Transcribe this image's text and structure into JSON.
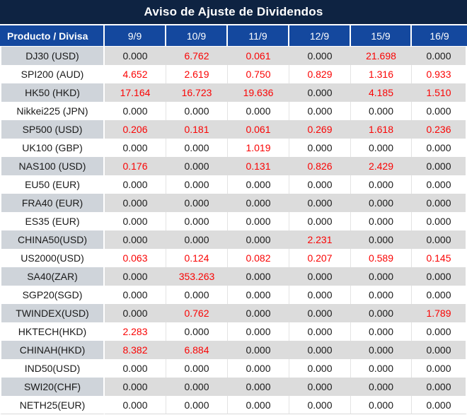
{
  "title": "Aviso de Ajuste de Dividendos",
  "colors": {
    "title_bar_bg": "#0e2342",
    "header_row_bg": "#14489e",
    "gray_row_product_bg": "#cfd4da",
    "gray_row_value_bg": "#dcdcdc",
    "negative_adjustment_red": "#fa0404",
    "value_text": "#1a1a1a"
  },
  "table": {
    "product_header": "Producto / Divisa",
    "date_headers": [
      "9/9",
      "10/9",
      "11/9",
      "12/9",
      "15/9",
      "16/9"
    ],
    "rows": [
      {
        "product": "DJ30 (USD)",
        "values": [
          "0.000",
          "6.762",
          "0.061",
          "0.000",
          "21.698",
          "0.000"
        ],
        "red": [
          0,
          1,
          1,
          0,
          1,
          0
        ]
      },
      {
        "product": "SPI200 (AUD)",
        "values": [
          "4.652",
          "2.619",
          "0.750",
          "0.829",
          "1.316",
          "0.933"
        ],
        "red": [
          1,
          1,
          1,
          1,
          1,
          1
        ]
      },
      {
        "product": "HK50 (HKD)",
        "values": [
          "17.164",
          "16.723",
          "19.636",
          "0.000",
          "4.185",
          "1.510"
        ],
        "red": [
          1,
          1,
          1,
          0,
          1,
          1
        ]
      },
      {
        "product": "Nikkei225 (JPN)",
        "values": [
          "0.000",
          "0.000",
          "0.000",
          "0.000",
          "0.000",
          "0.000"
        ],
        "red": [
          0,
          0,
          0,
          0,
          0,
          0
        ]
      },
      {
        "product": "SP500 (USD)",
        "values": [
          "0.206",
          "0.181",
          "0.061",
          "0.269",
          "1.618",
          "0.236"
        ],
        "red": [
          1,
          1,
          1,
          1,
          1,
          1
        ]
      },
      {
        "product": "UK100 (GBP)",
        "values": [
          "0.000",
          "0.000",
          "1.019",
          "0.000",
          "0.000",
          "0.000"
        ],
        "red": [
          0,
          0,
          1,
          0,
          0,
          0
        ]
      },
      {
        "product": "NAS100 (USD)",
        "values": [
          "0.176",
          "0.000",
          "0.131",
          "0.826",
          "2.429",
          "0.000"
        ],
        "red": [
          1,
          0,
          1,
          1,
          1,
          0
        ]
      },
      {
        "product": "EU50 (EUR)",
        "values": [
          "0.000",
          "0.000",
          "0.000",
          "0.000",
          "0.000",
          "0.000"
        ],
        "red": [
          0,
          0,
          0,
          0,
          0,
          0
        ]
      },
      {
        "product": "FRA40 (EUR)",
        "values": [
          "0.000",
          "0.000",
          "0.000",
          "0.000",
          "0.000",
          "0.000"
        ],
        "red": [
          0,
          0,
          0,
          0,
          0,
          0
        ]
      },
      {
        "product": "ES35 (EUR)",
        "values": [
          "0.000",
          "0.000",
          "0.000",
          "0.000",
          "0.000",
          "0.000"
        ],
        "red": [
          0,
          0,
          0,
          0,
          0,
          0
        ]
      },
      {
        "product": "CHINA50(USD)",
        "values": [
          "0.000",
          "0.000",
          "0.000",
          "2.231",
          "0.000",
          "0.000"
        ],
        "red": [
          0,
          0,
          0,
          1,
          0,
          0
        ]
      },
      {
        "product": "US2000(USD)",
        "values": [
          "0.063",
          "0.124",
          "0.082",
          "0.207",
          "0.589",
          "0.145"
        ],
        "red": [
          1,
          1,
          1,
          1,
          1,
          1
        ]
      },
      {
        "product": "SA40(ZAR)",
        "values": [
          "0.000",
          "353.263",
          "0.000",
          "0.000",
          "0.000",
          "0.000"
        ],
        "red": [
          0,
          1,
          0,
          0,
          0,
          0
        ]
      },
      {
        "product": "SGP20(SGD)",
        "values": [
          "0.000",
          "0.000",
          "0.000",
          "0.000",
          "0.000",
          "0.000"
        ],
        "red": [
          0,
          0,
          0,
          0,
          0,
          0
        ]
      },
      {
        "product": "TWINDEX(USD)",
        "values": [
          "0.000",
          "0.762",
          "0.000",
          "0.000",
          "0.000",
          "1.789"
        ],
        "red": [
          0,
          1,
          0,
          0,
          0,
          1
        ]
      },
      {
        "product": "HKTECH(HKD)",
        "values": [
          "2.283",
          "0.000",
          "0.000",
          "0.000",
          "0.000",
          "0.000"
        ],
        "red": [
          1,
          0,
          0,
          0,
          0,
          0
        ]
      },
      {
        "product": "CHINAH(HKD)",
        "values": [
          "8.382",
          "6.884",
          "0.000",
          "0.000",
          "0.000",
          "0.000"
        ],
        "red": [
          1,
          1,
          0,
          0,
          0,
          0
        ]
      },
      {
        "product": "IND50(USD)",
        "values": [
          "0.000",
          "0.000",
          "0.000",
          "0.000",
          "0.000",
          "0.000"
        ],
        "red": [
          0,
          0,
          0,
          0,
          0,
          0
        ]
      },
      {
        "product": "SWI20(CHF)",
        "values": [
          "0.000",
          "0.000",
          "0.000",
          "0.000",
          "0.000",
          "0.000"
        ],
        "red": [
          0,
          0,
          0,
          0,
          0,
          0
        ]
      },
      {
        "product": "NETH25(EUR)",
        "values": [
          "0.000",
          "0.000",
          "0.000",
          "0.000",
          "0.000",
          "0.000"
        ],
        "red": [
          0,
          0,
          0,
          0,
          0,
          0
        ]
      }
    ]
  }
}
